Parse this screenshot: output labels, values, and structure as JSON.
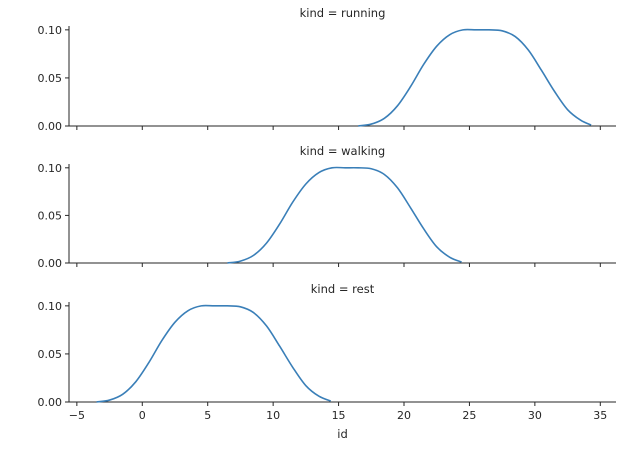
{
  "chart_data": {
    "type": "line",
    "subtype": "facet-kde",
    "xlabel": "id",
    "xlim": [
      -5.6,
      36.2
    ],
    "ylim": [
      0,
      0.104
    ],
    "xticks": [
      -5,
      0,
      5,
      10,
      15,
      20,
      25,
      30,
      35
    ],
    "xtick_labels": [
      "−5",
      "0",
      "5",
      "10",
      "15",
      "20",
      "25",
      "30",
      "35"
    ],
    "yticks": [
      0,
      0.05,
      0.1
    ],
    "ytick_labels": [
      "0.00",
      "0.05",
      "0.10"
    ],
    "line_color": "#3a7fb8",
    "grid": false,
    "panels": [
      {
        "title": "kind = running",
        "x": [
          16.5,
          17.5,
          18.5,
          19.5,
          20.5,
          21.5,
          22.5,
          23.5,
          24.5,
          25.5,
          26.5,
          27.5,
          28.5,
          29.5,
          30.5,
          31.5,
          32.5,
          33.5,
          34.3
        ],
        "y": [
          0.0,
          0.002,
          0.008,
          0.021,
          0.041,
          0.064,
          0.083,
          0.095,
          0.1,
          0.1,
          0.1,
          0.099,
          0.093,
          0.079,
          0.058,
          0.036,
          0.017,
          0.006,
          0.001
        ]
      },
      {
        "title": "kind = walking",
        "x": [
          6.5,
          7.5,
          8.5,
          9.5,
          10.5,
          11.5,
          12.5,
          13.5,
          14.5,
          15.5,
          16.5,
          17.5,
          18.5,
          19.5,
          20.5,
          21.5,
          22.5,
          23.5,
          24.4
        ],
        "y": [
          0.0,
          0.002,
          0.008,
          0.021,
          0.041,
          0.064,
          0.083,
          0.095,
          0.1,
          0.1,
          0.1,
          0.099,
          0.093,
          0.079,
          0.058,
          0.036,
          0.017,
          0.006,
          0.001
        ]
      },
      {
        "title": "kind = rest",
        "x": [
          -3.5,
          -2.5,
          -1.5,
          -0.5,
          0.5,
          1.5,
          2.5,
          3.5,
          4.5,
          5.5,
          6.5,
          7.5,
          8.5,
          9.5,
          10.5,
          11.5,
          12.5,
          13.5,
          14.4
        ],
        "y": [
          0.0,
          0.002,
          0.008,
          0.021,
          0.041,
          0.064,
          0.083,
          0.095,
          0.1,
          0.1,
          0.1,
          0.099,
          0.093,
          0.079,
          0.058,
          0.036,
          0.017,
          0.006,
          0.001
        ]
      }
    ]
  }
}
